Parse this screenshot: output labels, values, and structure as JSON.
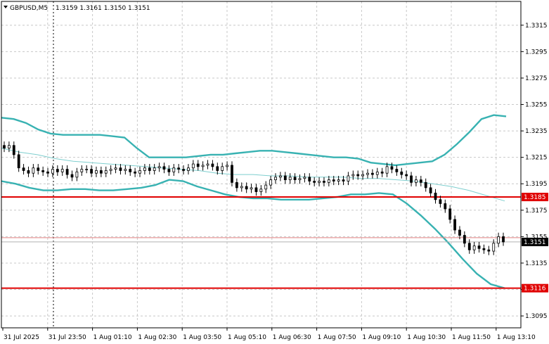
{
  "header": {
    "symbol_timeframe": "GBPUSD,M5",
    "ohlc": "1.3159 1.3161 1.3150 1.3151"
  },
  "colors": {
    "background": "#ffffff",
    "grid": "#c8c8c8",
    "candle": "#000000",
    "bollinger": "#38b2b2",
    "middle_band": "#7fcfcf",
    "level_line": "#e00000",
    "price_label_bg": "#000000",
    "level_label_bg": "#e00000"
  },
  "chart_data": {
    "type": "candlestick",
    "title": "GBPUSD,M5",
    "y_ticks": [
      "1.3315",
      "1.3295",
      "1.3275",
      "1.3255",
      "1.3235",
      "1.3215",
      "1.3195",
      "1.3175",
      "1.3155",
      "1.3135",
      "1.3115",
      "1.3095"
    ],
    "x_ticks": [
      "31 Jul 2025",
      "31 Jul 23:50",
      "1 Aug 01:10",
      "1 Aug 02:30",
      "1 Aug 03:50",
      "1 Aug 05:10",
      "1 Aug 06:30",
      "1 Aug 07:50",
      "1 Aug 09:10",
      "1 Aug 10:30",
      "1 Aug 11:50",
      "1 Aug 13:10"
    ],
    "ylim": [
      1.3086,
      1.3333
    ],
    "grid": true,
    "current_price": "1.3151",
    "horizontal_levels": [
      {
        "price": 1.3185,
        "label": "1.3185"
      },
      {
        "price": 1.3116,
        "label": "1.3116"
      }
    ],
    "close_series": [
      1.3222,
      1.3224,
      1.3217,
      1.3207,
      1.3205,
      1.3203,
      1.3207,
      1.3205,
      1.3204,
      1.3203,
      1.3206,
      1.3204,
      1.3206,
      1.3202,
      1.32,
      1.3204,
      1.3206,
      1.3206,
      1.3203,
      1.3205,
      1.3203,
      1.3205,
      1.3206,
      1.3207,
      1.3205,
      1.3206,
      1.3204,
      1.3203,
      1.3205,
      1.3207,
      1.3205,
      1.3207,
      1.3208,
      1.3206,
      1.3204,
      1.3207,
      1.3206,
      1.3205,
      1.3207,
      1.321,
      1.3208,
      1.3209,
      1.321,
      1.3208,
      1.3205,
      1.3208,
      1.3209,
      1.3196,
      1.3192,
      1.3193,
      1.3191,
      1.3192,
      1.3189,
      1.3191,
      1.3194,
      1.3198,
      1.32,
      1.3201,
      1.3198,
      1.32,
      1.3198,
      1.3199,
      1.32,
      1.3197,
      1.3196,
      1.3197,
      1.3196,
      1.3198,
      1.3197,
      1.3198,
      1.3197,
      1.3201,
      1.3202,
      1.3201,
      1.3202,
      1.3203,
      1.3202,
      1.3204,
      1.3203,
      1.3208,
      1.3206,
      1.3204,
      1.3202,
      1.3201,
      1.3196,
      1.3198,
      1.3196,
      1.3192,
      1.3188,
      1.3183,
      1.318,
      1.3176,
      1.3168,
      1.316,
      1.3156,
      1.315,
      1.3145,
      1.3148,
      1.3146,
      1.3145,
      1.3144,
      1.315,
      1.3155,
      1.3151
    ],
    "upper_band": [
      1.3245,
      1.3244,
      1.3241,
      1.3236,
      1.3233,
      1.3232,
      1.3232,
      1.3232,
      1.3232,
      1.3231,
      1.323,
      1.3222,
      1.3215,
      1.3215,
      1.3215,
      1.3215,
      1.3216,
      1.3217,
      1.3217,
      1.3218,
      1.3219,
      1.322,
      1.322,
      1.3219,
      1.3218,
      1.3217,
      1.3216,
      1.3215,
      1.3215,
      1.3214,
      1.3211,
      1.321,
      1.3209,
      1.321,
      1.3211,
      1.3212,
      1.3217,
      1.3225,
      1.3234,
      1.3244,
      1.3247,
      1.3246
    ],
    "middle_band": [
      1.3222,
      1.3219,
      1.3217,
      1.3214,
      1.3212,
      1.3211,
      1.321,
      1.3209,
      1.3208,
      1.3207,
      1.3206,
      1.3205,
      1.3203,
      1.3202,
      1.3202,
      1.3201,
      1.3201,
      1.32,
      1.32,
      1.32,
      1.3199,
      1.3199,
      1.3198,
      1.3197,
      1.3195,
      1.3193,
      1.319,
      1.3186,
      1.3182
    ],
    "lower_band": [
      1.3197,
      1.3195,
      1.3192,
      1.319,
      1.319,
      1.3191,
      1.3191,
      1.319,
      1.319,
      1.3191,
      1.3192,
      1.3194,
      1.3198,
      1.3197,
      1.3193,
      1.319,
      1.3187,
      1.3185,
      1.3184,
      1.3184,
      1.3183,
      1.3183,
      1.3183,
      1.3184,
      1.3185,
      1.3187,
      1.3187,
      1.3188,
      1.3187,
      1.318,
      1.3171,
      1.3161,
      1.315,
      1.3138,
      1.3127,
      1.3119,
      1.3116
    ]
  }
}
